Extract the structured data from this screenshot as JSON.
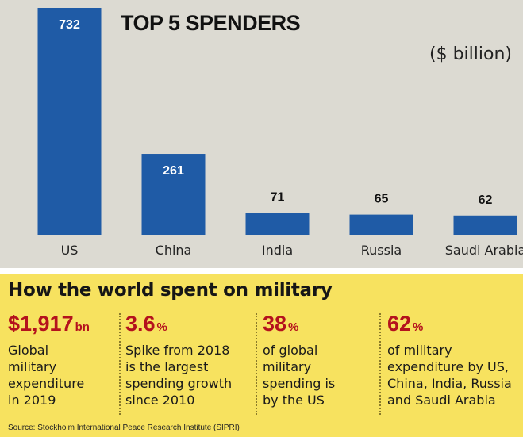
{
  "chart_data": {
    "type": "bar",
    "title": "TOP 5 SPENDERS",
    "unit_label": "($ billion)",
    "categories": [
      "US",
      "China",
      "India",
      "Russia",
      "Saudi Arabia"
    ],
    "values": [
      732,
      261,
      71,
      65,
      62
    ],
    "data_labels": [
      "732",
      "261",
      "71",
      "65",
      "62"
    ],
    "bar_color": "#1f5ba6",
    "value_label_color_inside": "#ffffff",
    "value_label_color_outside": "#111111",
    "ylim": [
      0,
      732
    ],
    "grid": false,
    "legend": "none"
  },
  "panel": {
    "heading": "How the world spent on military",
    "background": "#f7e25f",
    "accent": "#b4121d",
    "stats": [
      {
        "value": "$1,917",
        "unit": "bn",
        "desc_lines": [
          "Global",
          "military",
          "expenditure",
          "in 2019"
        ]
      },
      {
        "value": "3.6",
        "unit": "%",
        "desc_lines": [
          "Spike from 2018",
          "is the largest",
          "spending growth",
          "since 2010"
        ]
      },
      {
        "value": "38",
        "unit": "%",
        "desc_lines": [
          "of global",
          "military",
          "spending is",
          "by the US"
        ]
      },
      {
        "value": "62",
        "unit": "%",
        "desc_lines": [
          "of military",
          "expenditure by US,",
          "China, India, Russia",
          "and Saudi Arabia"
        ]
      }
    ],
    "source": "Source: Stockholm International Peace Research Institute (SIPRI)"
  }
}
